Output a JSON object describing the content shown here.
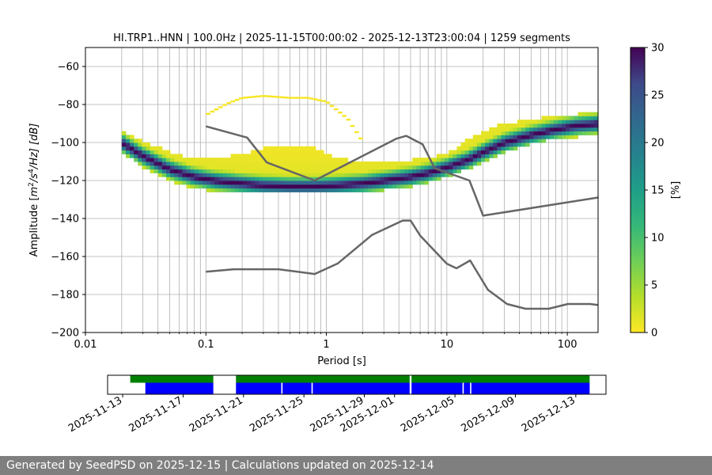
{
  "chart_data": [
    {
      "type": "heatmap",
      "title": "HI.TRP1..HNN | 100.0Hz | 2025-11-15T00:00:02 - 2025-12-13T23:00:04 | 1259 segments",
      "xlabel": "Period [s]",
      "ylabel_parts": [
        "Amplitude [",
        "m",
        "2",
        "/",
        "s",
        "4",
        "/Hz] [dB]"
      ],
      "xscale": "log",
      "xlim": [
        0.01,
        180
      ],
      "ylim": [
        -200,
        -50
      ],
      "xticks": [
        {
          "v": 0.01,
          "label": "0.01"
        },
        {
          "v": 0.1,
          "label": "0.1"
        },
        {
          "v": 1,
          "label": "1"
        },
        {
          "v": 10,
          "label": "10"
        },
        {
          "v": 100,
          "label": "100"
        }
      ],
      "yticks": [
        -200,
        -180,
        -160,
        -140,
        -120,
        -100,
        -80,
        -60
      ],
      "grid": true,
      "colorbar": {
        "label": "[%]",
        "min": 0,
        "max": 30,
        "ticks": [
          0,
          5,
          10,
          15,
          20,
          25,
          30
        ],
        "colormap": "viridis_r"
      },
      "mode_curve": {
        "name": "mode",
        "x": [
          0.02,
          0.03,
          0.05,
          0.08,
          0.12,
          0.2,
          0.3,
          0.5,
          0.8,
          1.2,
          2,
          3,
          5,
          7,
          10,
          15,
          20,
          30,
          50,
          80,
          120,
          180
        ],
        "y": [
          -101,
          -108,
          -115,
          -119,
          -121,
          -122.5,
          -123.5,
          -124,
          -124,
          -123.5,
          -122.5,
          -121,
          -119,
          -117,
          -114,
          -110,
          -106,
          -101,
          -97,
          -94,
          -92,
          -91
        ]
      },
      "density_band": {
        "x": [
          0.02,
          0.03,
          0.05,
          0.08,
          0.12,
          0.2,
          0.3,
          0.5,
          0.8,
          1.2,
          2,
          3,
          5,
          7,
          10,
          15,
          20,
          30,
          50,
          80,
          120,
          180
        ],
        "lower": [
          -104,
          -112,
          -119,
          -123,
          -125,
          -126,
          -126,
          -126,
          -126,
          -126,
          -125,
          -124,
          -122,
          -120,
          -117,
          -113,
          -109,
          -104,
          -100,
          -97,
          -96,
          -95
        ],
        "upper": [
          -95,
          -100,
          -106,
          -110,
          -109,
          -107,
          -104,
          -103,
          -104,
          -109,
          -111,
          -111,
          -110,
          -109,
          -107,
          -99,
          -95,
          -91,
          -89,
          -87,
          -86,
          -85
        ]
      },
      "sparse_arc": {
        "x": [
          0.1,
          0.15,
          0.2,
          0.3,
          0.5,
          0.7,
          1.0,
          1.5,
          2.0
        ],
        "y": [
          -86,
          -80,
          -77,
          -76,
          -77,
          -77,
          -79,
          -88,
          -100
        ]
      },
      "nhnm": {
        "name": "NHNM",
        "x": [
          0.1,
          0.22,
          0.32,
          0.8,
          3.8,
          4.6,
          6.3,
          7.9,
          15.4,
          20,
          354.8
        ],
        "y": [
          -91.5,
          -97.4,
          -110.5,
          -120,
          -98,
          -96.5,
          -101,
          -113.5,
          -120,
          -138.5,
          -126
        ]
      },
      "nlnm": {
        "name": "NLNM",
        "x": [
          0.1,
          0.17,
          0.4,
          0.8,
          1.24,
          2.4,
          4.3,
          5,
          6,
          10,
          12,
          15.6,
          21.9,
          31.6,
          45,
          70,
          101,
          154,
          180
        ],
        "y": [
          -168,
          -166.7,
          -166.7,
          -169.2,
          -163.7,
          -148.6,
          -141.1,
          -141.1,
          -149,
          -163.8,
          -166.2,
          -162.1,
          -177.5,
          -185,
          -187.5,
          -187.5,
          -185,
          -185,
          -185.5
        ]
      }
    },
    {
      "type": "timeline",
      "date_ticks": [
        "2025-11-13",
        "2025-11-17",
        "2025-11-21",
        "2025-11-25",
        "2025-11-29",
        "2025-12-01",
        "2025-12-05",
        "2025-12-09",
        "2025-12-13"
      ],
      "range": [
        "2025-11-12",
        "2025-12-15"
      ],
      "green_segments": [
        [
          "2025-11-13T12",
          "2025-11-19T00"
        ],
        [
          "2025-11-20T12",
          "2025-12-02T00"
        ],
        [
          "2025-12-02T03",
          "2025-12-13T22"
        ]
      ],
      "blue_segments": [
        [
          "2025-11-14T12",
          "2025-11-19T00"
        ],
        [
          "2025-11-20T12",
          "2025-11-23T12"
        ],
        [
          "2025-11-23T14",
          "2025-11-25T12"
        ],
        [
          "2025-11-25T14",
          "2025-12-02T00"
        ],
        [
          "2025-12-02T03",
          "2025-12-05T12"
        ],
        [
          "2025-12-05T14",
          "2025-12-06T00"
        ],
        [
          "2025-12-06T02",
          "2025-12-13T22"
        ]
      ],
      "colors": {
        "green": "#008000",
        "blue": "#0000ff"
      }
    }
  ],
  "footer": {
    "text": "Generated by SeedPSD on 2025-12-15 | Calculations updated on 2025-12-14"
  },
  "colors": {
    "curve": "#666666",
    "grid": "#b0b0b0"
  }
}
